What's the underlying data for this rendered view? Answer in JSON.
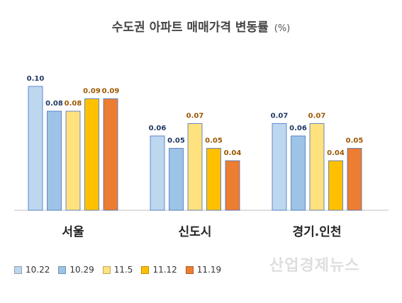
{
  "chart_data": {
    "type": "bar",
    "title": "수도권 아파트 매매가격 변동률",
    "title_unit": "(%)",
    "categories": [
      "서울",
      "신도시",
      "경기.인천"
    ],
    "series": [
      {
        "name": "10.22",
        "values": [
          0.1,
          0.06,
          0.07
        ],
        "color": "#BDD7EE",
        "label_color": "#1F3864"
      },
      {
        "name": "10.29",
        "values": [
          0.08,
          0.05,
          0.06
        ],
        "color": "#9DC3E6",
        "label_color": "#1F3864"
      },
      {
        "name": "11.5",
        "values": [
          0.08,
          0.07,
          0.07
        ],
        "color": "#FFE17D",
        "label_color": "#9C5700"
      },
      {
        "name": "11.12",
        "values": [
          0.09,
          0.05,
          0.04
        ],
        "color": "#FFC000",
        "label_color": "#9C5700"
      },
      {
        "name": "11.19",
        "values": [
          0.09,
          0.04,
          0.05
        ],
        "color": "#ED7D31",
        "label_color": "#9C5700"
      }
    ],
    "ylim": [
      0,
      0.1
    ],
    "grid": false,
    "legend_position": "bottom-left",
    "data_labels": [
      "0.10",
      "0.08",
      "0.08",
      "0.09",
      "0.09",
      "0.06",
      "0.05",
      "0.07",
      "0.05",
      "0.04",
      "0.07",
      "0.06",
      "0.07",
      "0.04",
      "0.05"
    ]
  },
  "watermark": "산업경제뉴스"
}
